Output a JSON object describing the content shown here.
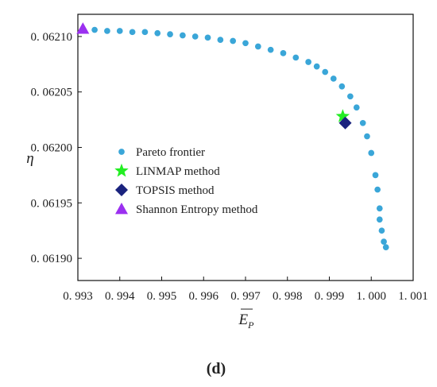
{
  "chart_data": {
    "type": "scatter",
    "title": "",
    "xlabel": "E",
    "xlabel_sub": "P",
    "ylabel": "η",
    "xlim": [
      0.993,
      1.001
    ],
    "ylim": [
      0.06188,
      0.06212
    ],
    "xticks": [
      0.993,
      0.994,
      0.995,
      0.996,
      0.997,
      0.998,
      0.999,
      1.0,
      1.001
    ],
    "xtick_labels": [
      "0. 993",
      "0. 994",
      "0. 995",
      "0. 996",
      "0. 997",
      "0. 998",
      "0. 999",
      "1. 000",
      "1. 001"
    ],
    "yticks": [
      0.0619,
      0.06195,
      0.062,
      0.06205,
      0.0621
    ],
    "ytick_labels": [
      "0. 06190",
      "0. 06195",
      "0. 06200",
      "0. 06205",
      "0. 06210"
    ],
    "grid": false,
    "legend_position": "center-left",
    "series": [
      {
        "name": "Pareto frontier",
        "marker": "circle",
        "color": "#3aa6d8",
        "points": [
          [
            0.99312,
            0.062106
          ],
          [
            0.9934,
            0.062106
          ],
          [
            0.9937,
            0.062105
          ],
          [
            0.994,
            0.062105
          ],
          [
            0.9943,
            0.062104
          ],
          [
            0.9946,
            0.062104
          ],
          [
            0.9949,
            0.062103
          ],
          [
            0.9952,
            0.062102
          ],
          [
            0.9955,
            0.062101
          ],
          [
            0.9958,
            0.0621
          ],
          [
            0.9961,
            0.062099
          ],
          [
            0.9964,
            0.062097
          ],
          [
            0.9967,
            0.062096
          ],
          [
            0.997,
            0.062094
          ],
          [
            0.9973,
            0.062091
          ],
          [
            0.9976,
            0.062088
          ],
          [
            0.9979,
            0.062085
          ],
          [
            0.9982,
            0.062081
          ],
          [
            0.9985,
            0.062077
          ],
          [
            0.9987,
            0.062073
          ],
          [
            0.9989,
            0.062068
          ],
          [
            0.9991,
            0.062062
          ],
          [
            0.9993,
            0.062055
          ],
          [
            0.9995,
            0.062046
          ],
          [
            0.99965,
            0.062036
          ],
          [
            0.9998,
            0.062022
          ],
          [
            0.9999,
            0.06201
          ],
          [
            1.0,
            0.061995
          ],
          [
            1.0001,
            0.061975
          ],
          [
            1.00015,
            0.061962
          ],
          [
            1.0002,
            0.061945
          ],
          [
            1.0002,
            0.061935
          ],
          [
            1.00025,
            0.061925
          ],
          [
            1.0003,
            0.061915
          ],
          [
            1.00035,
            0.06191
          ]
        ]
      },
      {
        "name": "LINMAP method",
        "marker": "star",
        "color": "#22ee22",
        "points": [
          [
            0.99932,
            0.062028
          ]
        ]
      },
      {
        "name": "TOPSIS method",
        "marker": "diamond",
        "color": "#1a237e",
        "points": [
          [
            0.99938,
            0.062022
          ]
        ]
      },
      {
        "name": "Shannon Entropy method",
        "marker": "triangle",
        "color": "#9b30f0",
        "points": [
          [
            0.99312,
            0.062107
          ]
        ]
      }
    ],
    "panel_label": "(d)"
  }
}
